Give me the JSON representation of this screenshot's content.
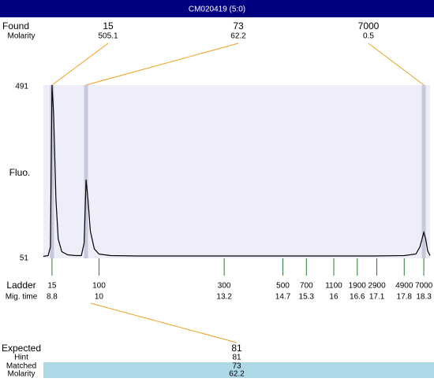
{
  "title": "CM020419 (5:0)",
  "labels": {
    "found": "Found",
    "molarity": "Molarity",
    "fluo": "Fluo.",
    "ladder": "Ladder",
    "mig_time": "Mig. time"
  },
  "chart_data": {
    "type": "line",
    "color": "#000000",
    "x": [
      8.58,
      8.7,
      8.76,
      8.8,
      8.84,
      8.9,
      8.96,
      9.05,
      9.2,
      9.4,
      9.55,
      9.62,
      9.67,
      9.72,
      9.78,
      9.88,
      10.0,
      10.3,
      11,
      12,
      13,
      14,
      15,
      16,
      17,
      17.8,
      18.1,
      18.2,
      18.3,
      18.35,
      18.4,
      18.46
    ],
    "values": [
      56,
      58,
      80,
      491,
      420,
      200,
      100,
      68,
      60,
      58,
      58,
      90,
      251,
      200,
      120,
      75,
      62,
      58,
      57,
      57,
      57,
      57,
      57,
      57,
      57,
      58,
      62,
      80,
      117,
      100,
      70,
      58
    ],
    "xlim": [
      8.58,
      18.46
    ],
    "ylim": [
      51,
      491
    ],
    "yticks": [
      51,
      491
    ]
  },
  "found_peaks": [
    {
      "size": 15,
      "molarity": 505.1,
      "time": 8.8
    },
    {
      "size": 73,
      "molarity": 62.2,
      "time": 9.67
    },
    {
      "size": 7000,
      "molarity": 0.5,
      "time": 18.3
    }
  ],
  "ladder": {
    "sizes": [
      15,
      100,
      300,
      500,
      700,
      1100,
      1900,
      2900,
      4900,
      7000
    ],
    "times": [
      8.8,
      10,
      13.2,
      14.7,
      15.3,
      16,
      16.6,
      17.1,
      17.8,
      18.3
    ]
  },
  "expected": [
    {
      "label": "Expected",
      "value": 81
    },
    {
      "label": "Hint",
      "value": 81
    },
    {
      "label": "Matched",
      "value": 73
    },
    {
      "label": "Molarity",
      "value": 62.2
    }
  ]
}
